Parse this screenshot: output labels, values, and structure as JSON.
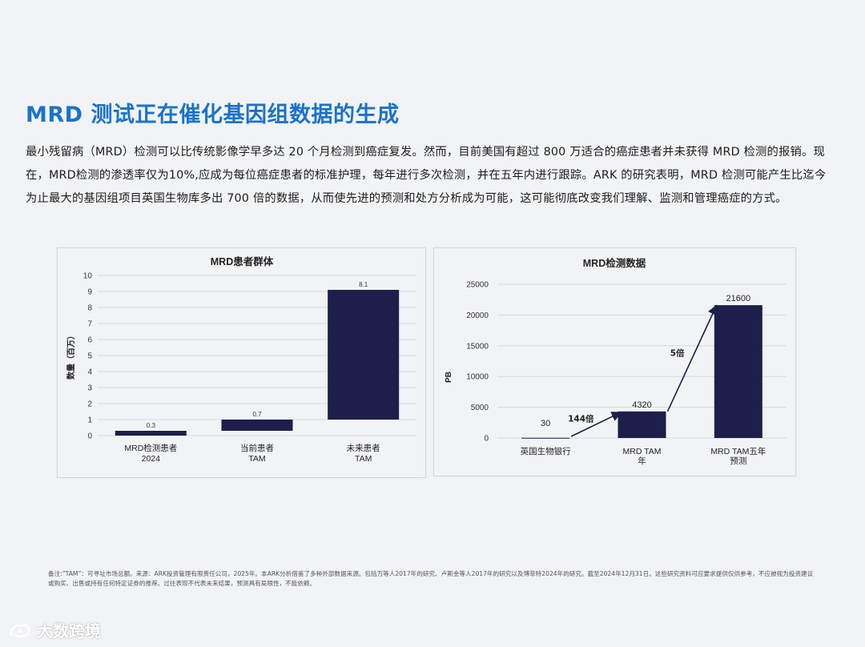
{
  "title": "MRD 测试正在催化基因组数据的生成",
  "body": "最小残留病（MRD）检测可以比传统影像学早多达 20 个月检测到癌症复发。然而，目前美国有超过 800 万适合的癌症患者并未获得 MRD 检测的报销。现在，MRD检测的渗透率仅为10%,应成为每位癌症患者的标准护理，每年进行多次检测，并在五年内进行跟踪。ARK 的研究表明，MRD 检测可能产生比迄今为止最大的基因组项目英国生物库多出 700 倍的数据，从而使先进的预测和处方分析成为可能，这可能彻底改变我们理解、监测和管理癌症的方式。",
  "chart_data": [
    {
      "type": "bar",
      "subtype": "floating",
      "title": "MRD患者群体",
      "ylabel": "数量（百万）",
      "categories": [
        "MRD检测患者\n2024",
        "当前患者\nTAM",
        "未来患者\nTAM"
      ],
      "bars": [
        {
          "start": 0,
          "end": 0.3,
          "label": "0.3"
        },
        {
          "start": 0.3,
          "end": 1.0,
          "label": "0.7"
        },
        {
          "start": 1.0,
          "end": 9.1,
          "label": "8.1"
        }
      ],
      "ylim": [
        0,
        10
      ],
      "yticks": [
        "0",
        "1",
        "2",
        "3",
        "4",
        "5",
        "6",
        "7",
        "8",
        "9",
        "10"
      ],
      "grid": true,
      "bar_color": "#1e1e4b"
    },
    {
      "type": "bar",
      "title": "MRD检测数据",
      "ylabel": "PB",
      "categories": [
        "英国生物银行",
        "MRD TAM\n年",
        "MRD TAM五年\n预测"
      ],
      "values": [
        30,
        4320,
        21600
      ],
      "value_labels": [
        "30",
        "4320",
        "21600"
      ],
      "ylim": [
        0,
        25000
      ],
      "yticks": [
        "0",
        "5000",
        "10000",
        "15000",
        "20000",
        "25000"
      ],
      "grid": true,
      "bar_color": "#1e1e4b",
      "annotations": [
        {
          "text": "144倍",
          "from": 0,
          "to": 1
        },
        {
          "text": "5倍",
          "from": 1,
          "to": 2
        }
      ]
    }
  ],
  "footnote": "备注:“TAM”：可寻址市场总额。来源：ARK投资管理有限责任公司，2025年。本ARK分析借鉴了多种外部数据来源。包括万等人2017年的研究、卢斯金等人2017年的研究以及博菲特2024年的研究。截至2024年12月31日。这些研究资料可应要求提供仅供参考，不应被视为投资建议或购买、出售或持有任何特定证券的推荐。过往表现不代表未来结果，预测具有局限性，不能依赖。",
  "watermark": "大数跨境"
}
